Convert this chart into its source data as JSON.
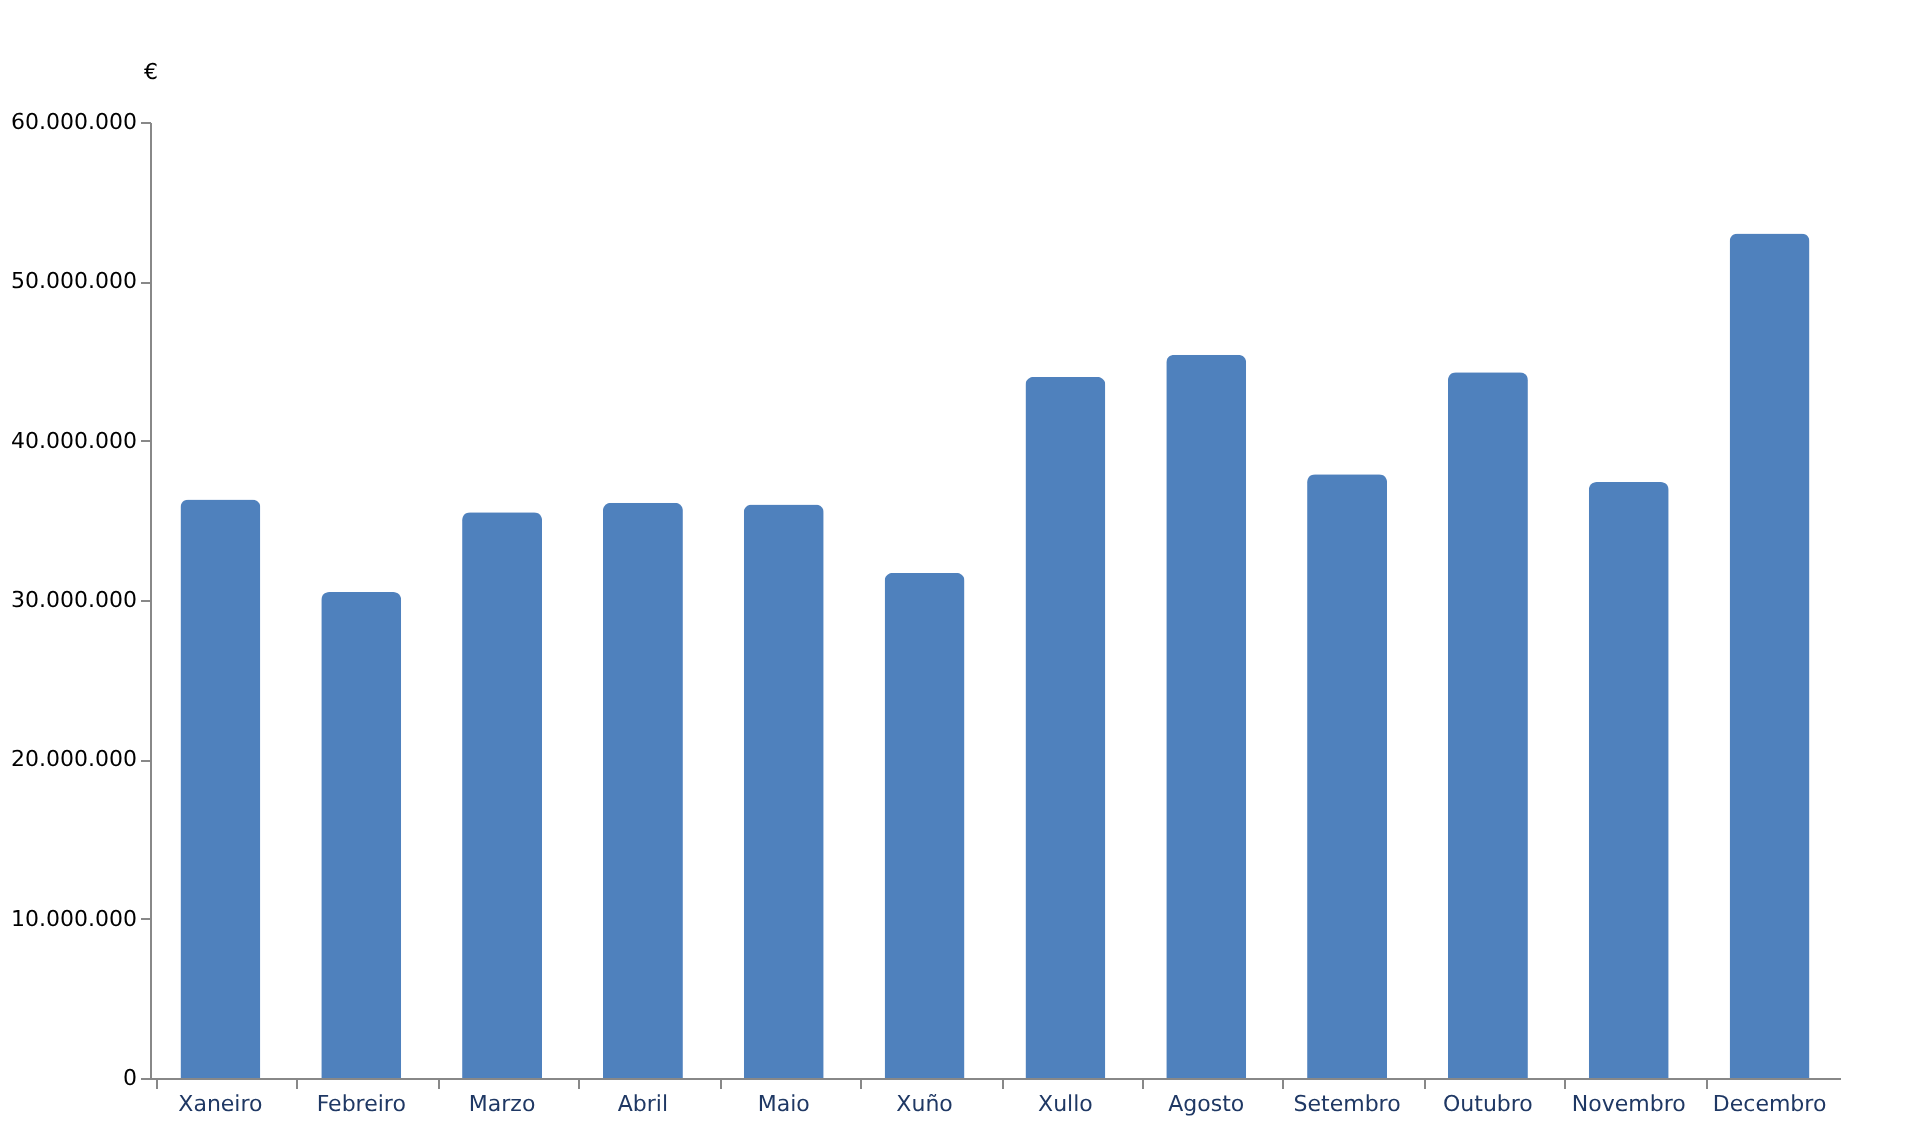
{
  "chart_data": {
    "type": "bar",
    "ylabel": "€",
    "categories": [
      "Xaneiro",
      "Febreiro",
      "Marzo",
      "Abril",
      "Maio",
      "Xuño",
      "Xullo",
      "Agosto",
      "Setembro",
      "Outubro",
      "Novembro",
      "Decembro"
    ],
    "values": [
      36300000,
      30500000,
      35500000,
      36100000,
      36000000,
      31700000,
      44000000,
      45400000,
      37900000,
      44300000,
      37400000,
      53000000
    ],
    "color": "#4f81bd",
    "ylim": [
      0,
      60000000
    ],
    "yticks": [
      0,
      {
        "value": 10000000,
        "label": "10.000.000"
      },
      {
        "value": 20000000,
        "label": "20.000.000"
      },
      {
        "value": 30000000,
        "label": "30.000.000"
      },
      {
        "value": 40000000,
        "label": "40.000.000"
      },
      {
        "value": 50000000,
        "label": "50.000.000"
      },
      {
        "value": 60000000,
        "label": "60.000.000"
      }
    ],
    "grid": false
  }
}
